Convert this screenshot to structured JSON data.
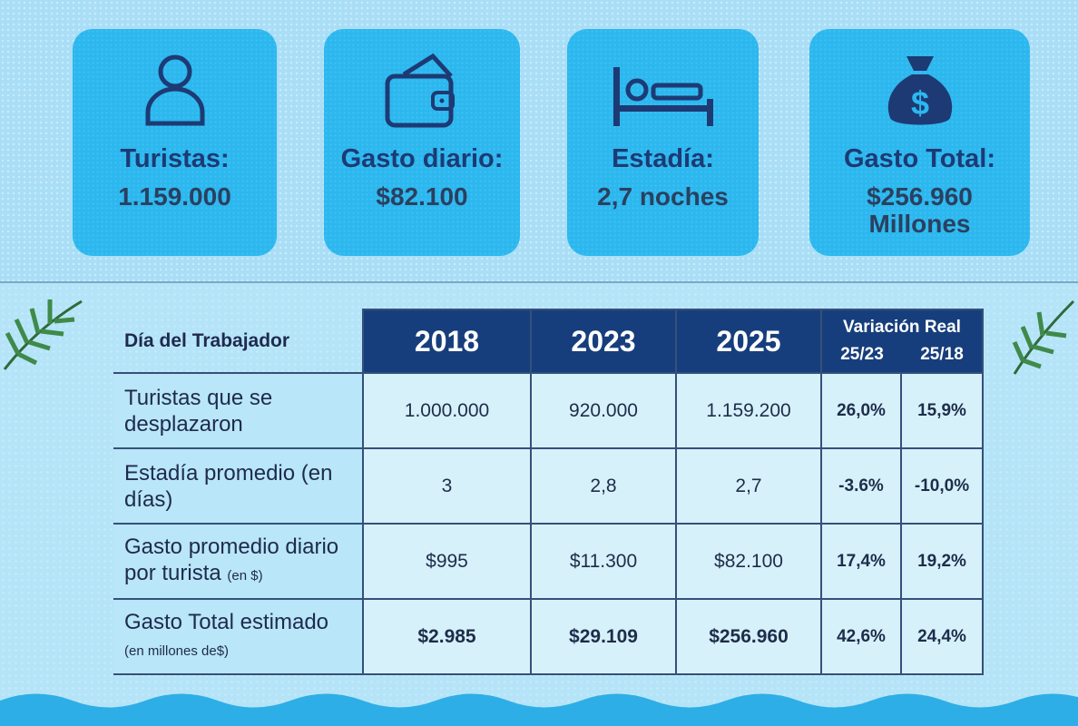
{
  "cards": [
    {
      "icon": "person-icon",
      "label": "Turistas:",
      "value": "1.159.000"
    },
    {
      "icon": "wallet-icon",
      "label": "Gasto diario:",
      "value": "$82.100"
    },
    {
      "icon": "bed-icon",
      "label": "Estadía:",
      "value": "2,7 noches"
    },
    {
      "icon": "money-bag-icon",
      "label": "Gasto Total:",
      "value": "$256.960",
      "value2": "Millones"
    }
  ],
  "table": {
    "title": "Día del Trabajador",
    "years": [
      "2018",
      "2023",
      "2025"
    ],
    "variation_label": "Variación Real",
    "variation_cols": [
      "25/23",
      "25/18"
    ],
    "rows": [
      {
        "label": "Turistas que se desplazaron",
        "note": "",
        "values": [
          "1.000.000",
          "920.000",
          "1.159.200"
        ],
        "var": [
          "26,0%",
          "15,9%"
        ]
      },
      {
        "label": "Estadía promedio (en días)",
        "note": "",
        "values": [
          "3",
          "2,8",
          "2,7"
        ],
        "var": [
          "-3.6%",
          "-10,0%"
        ]
      },
      {
        "label": "Gasto promedio diario por turista",
        "note": "(en $)",
        "values": [
          "$995",
          "$11.300",
          "$82.100"
        ],
        "var": [
          "17,4%",
          "19,2%"
        ]
      },
      {
        "label": "Gasto Total estimado",
        "note": "(en millones de$)",
        "values": [
          "$2.985",
          "$29.109",
          "$256.960"
        ],
        "var": [
          "42,6%",
          "24,4%"
        ]
      }
    ]
  }
}
